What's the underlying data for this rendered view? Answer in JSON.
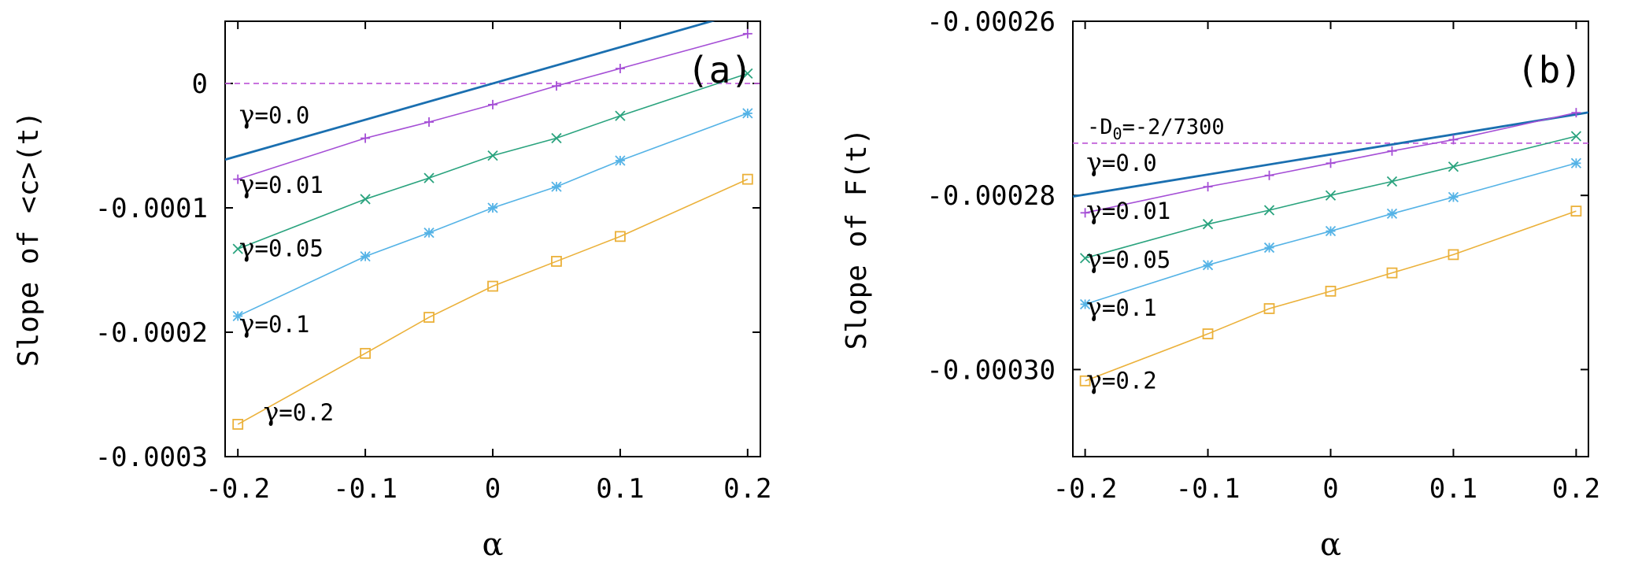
{
  "chart_data": [
    {
      "type": "line",
      "panel_label": "(a)",
      "xlabel": "α",
      "ylabel": "Slope of <c>(t)",
      "xlim": [
        -0.21,
        0.21
      ],
      "ylim": [
        -0.0003,
        5e-05
      ],
      "xticks": [
        -0.2,
        -0.1,
        0,
        0.1,
        0.2
      ],
      "xtick_labels": [
        "-0.2",
        "-0.1",
        "0",
        "0.1",
        "0.2"
      ],
      "yticks": [
        0,
        -0.0001,
        -0.0002,
        -0.0003
      ],
      "ytick_labels": [
        "0",
        "-0.0001",
        "-0.0002",
        "-0.0003"
      ],
      "x": [
        -0.2,
        -0.1,
        -0.05,
        0,
        0.05,
        0.1,
        0.2
      ],
      "reference_line": {
        "y": 0,
        "label": "",
        "color": "#c15fd9"
      },
      "series": [
        {
          "name": "γ=0.0",
          "color": "#1a6fb0",
          "marker": "none",
          "values": [
            -5.83e-05,
            -2.92e-05,
            -1.46e-05,
            0,
            1.46e-05,
            2.92e-05,
            5.83e-05
          ],
          "label_anchor": [
            -0.199,
            -3.2e-05
          ]
        },
        {
          "name": "γ=0.01",
          "color": "#a54fd6",
          "marker": "plus",
          "values": [
            -7.7e-05,
            -4.4e-05,
            -3.1e-05,
            -1.7e-05,
            -2e-06,
            1.2e-05,
            4e-05
          ],
          "label_anchor": [
            -0.199,
            -8.8e-05
          ]
        },
        {
          "name": "γ=0.05",
          "color": "#2aa37e",
          "marker": "cross",
          "values": [
            -0.000133,
            -9.3e-05,
            -7.6e-05,
            -5.8e-05,
            -4.4e-05,
            -2.6e-05,
            8e-06
          ],
          "label_anchor": [
            -0.199,
            -0.000139
          ]
        },
        {
          "name": "γ=0.1",
          "color": "#55b3e6",
          "marker": "star",
          "values": [
            -0.000187,
            -0.000139,
            -0.00012,
            -0.0001,
            -8.3e-05,
            -6.2e-05,
            -2.4e-05
          ],
          "label_anchor": [
            -0.199,
            -0.0002
          ]
        },
        {
          "name": "γ=0.2",
          "color": "#ebb13a",
          "marker": "square",
          "values": [
            -0.000274,
            -0.000217,
            -0.000188,
            -0.000163,
            -0.000143,
            -0.000123,
            -7.7e-05
          ],
          "label_anchor": [
            -0.18,
            -0.000271
          ]
        }
      ]
    },
    {
      "type": "line",
      "panel_label": "(b)",
      "xlabel": "α",
      "ylabel": "Slope of F(t)",
      "xlim": [
        -0.21,
        0.21
      ],
      "ylim": [
        -0.00031,
        -0.00026
      ],
      "xticks": [
        -0.2,
        -0.1,
        0,
        0.1,
        0.2
      ],
      "xtick_labels": [
        "-0.2",
        "-0.1",
        "0",
        "0.1",
        "0.2"
      ],
      "yticks": [
        -0.00026,
        -0.00028,
        -0.0003
      ],
      "ytick_labels": [
        "-0.00026",
        "-0.00028",
        "-0.00030"
      ],
      "x": [
        -0.2,
        -0.1,
        -0.05,
        0,
        0.05,
        0.1,
        0.2
      ],
      "reference_line": {
        "y": -0.000274,
        "label": "-D0=-2/7300",
        "label_main": "-D",
        "label_sub": "0",
        "label_rest": "=-2/7300",
        "color": "#c15fd9"
      },
      "series": [
        {
          "name": "γ=0.0",
          "color": "#1a6fb0",
          "marker": "none",
          "values": [
            -0.0002799,
            -0.0002776,
            -0.0002764,
            -0.0002753,
            -0.0002742,
            -0.000273,
            -0.0002707
          ],
          "label_anchor": [
            -0.199,
            -0.0002772
          ]
        },
        {
          "name": "γ=0.01",
          "color": "#a54fd6",
          "marker": "plus",
          "values": [
            -0.000282,
            -0.000279,
            -0.0002777,
            -0.0002763,
            -0.0002749,
            -0.0002736,
            -0.0002705
          ],
          "label_anchor": [
            -0.199,
            -0.0002827
          ]
        },
        {
          "name": "γ=0.05",
          "color": "#2aa37e",
          "marker": "cross",
          "values": [
            -0.0002872,
            -0.0002833,
            -0.0002817,
            -0.00028,
            -0.0002784,
            -0.0002767,
            -0.0002732
          ],
          "label_anchor": [
            -0.199,
            -0.0002883
          ]
        },
        {
          "name": "γ=0.1",
          "color": "#55b3e6",
          "marker": "star",
          "values": [
            -0.0002925,
            -0.000288,
            -0.000286,
            -0.0002841,
            -0.0002821,
            -0.0002802,
            -0.0002763
          ],
          "label_anchor": [
            -0.199,
            -0.0002938
          ]
        },
        {
          "name": "γ=0.2",
          "color": "#ebb13a",
          "marker": "square",
          "values": [
            -0.0003013,
            -0.0002959,
            -0.000293,
            -0.000291,
            -0.0002889,
            -0.0002868,
            -0.0002818
          ],
          "label_anchor": [
            -0.199,
            -0.0003022
          ]
        }
      ]
    }
  ]
}
